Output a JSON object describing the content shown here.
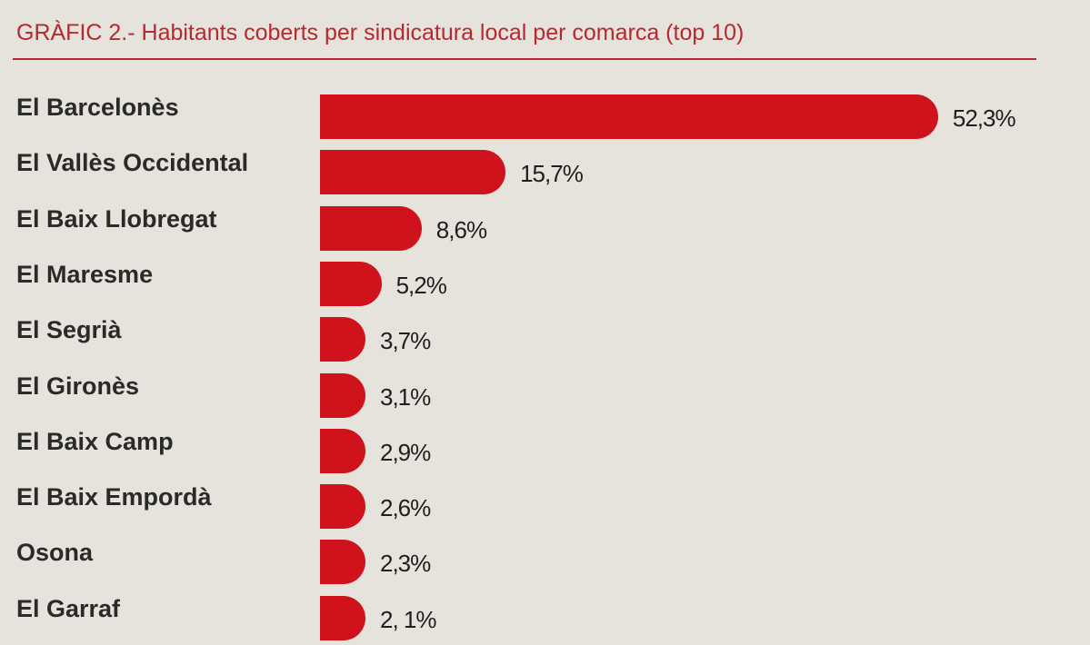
{
  "chart_data": {
    "type": "bar",
    "orientation": "horizontal",
    "title": "GRÀFIC 2.- Habitants coberts per sindicatura local per comarca (top 10)",
    "categories": [
      "El Barcelonès",
      "El Vallès Occidental",
      "El Baix Llobregat",
      "El Maresme",
      "El Segrià",
      "El Gironès",
      "El Baix Camp",
      "El Baix Empordà",
      "Osona",
      "El Garraf"
    ],
    "values": [
      52.3,
      15.7,
      8.6,
      5.2,
      3.7,
      3.1,
      2.9,
      2.6,
      2.3,
      2.1
    ],
    "value_labels": [
      "52,3%",
      "15,7%",
      "8,6%",
      "5,2%",
      "3,7%",
      "3,1%",
      "2,9%",
      "2,6%",
      "2,3%",
      "2, 1%"
    ],
    "unit": "%",
    "colors": {
      "bar": "#d0121c",
      "title": "#b52a2e",
      "background": "#e6e2dc"
    }
  }
}
